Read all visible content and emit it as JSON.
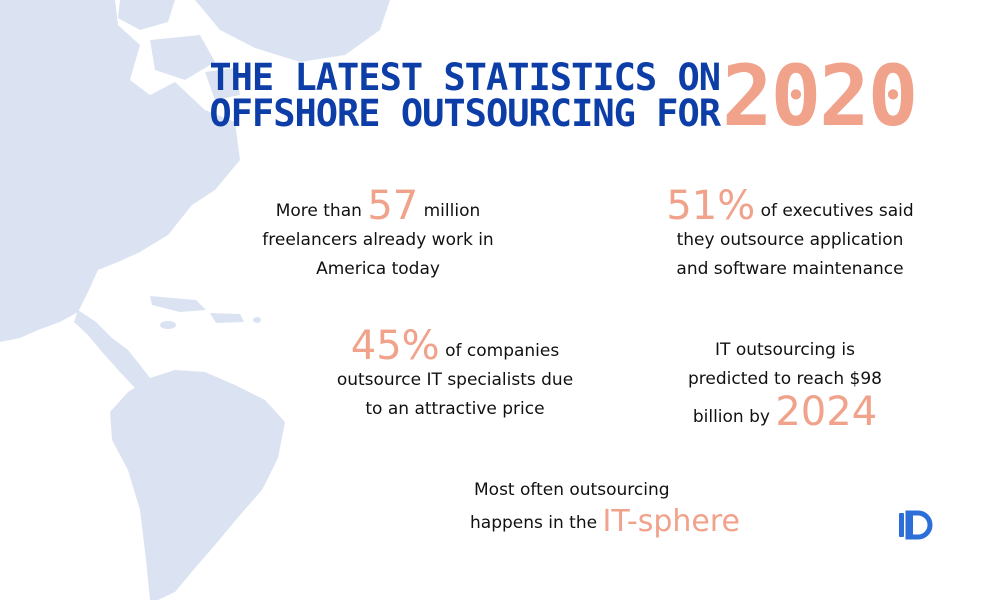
{
  "title": {
    "line1": "THE LATEST STATISTICS ON",
    "line2": "OFFSHORE OUTSOURCING FOR",
    "year": "2020"
  },
  "stats": {
    "freelancers": {
      "prefix": "More than",
      "number": "57",
      "suffix": "million",
      "line2": "freelancers already work in",
      "line3": "America today"
    },
    "executives": {
      "number": "51%",
      "suffix": "of executives said",
      "line2": "they outsource application",
      "line3": "and software maintenance"
    },
    "companies": {
      "number": "45%",
      "suffix": "of companies",
      "line2": "outsource IT specialists due",
      "line3": "to an attractive price"
    },
    "it_market": {
      "line1": "IT outsourcing is",
      "line2": "predicted to reach $98",
      "line3": "billion by",
      "year": "2024"
    },
    "sphere": {
      "line1": "Most often outsourcing",
      "line2": "happens in the",
      "highlight": "IT-sphere"
    }
  },
  "colors": {
    "title_blue": "#0d3ea8",
    "accent_salmon": "#f0a28a",
    "map_blue": "#dbe3f2",
    "logo_blue": "#2d6fd8"
  },
  "icons": {
    "logo": "company-logo-id-mark",
    "background": "americas-world-map"
  }
}
